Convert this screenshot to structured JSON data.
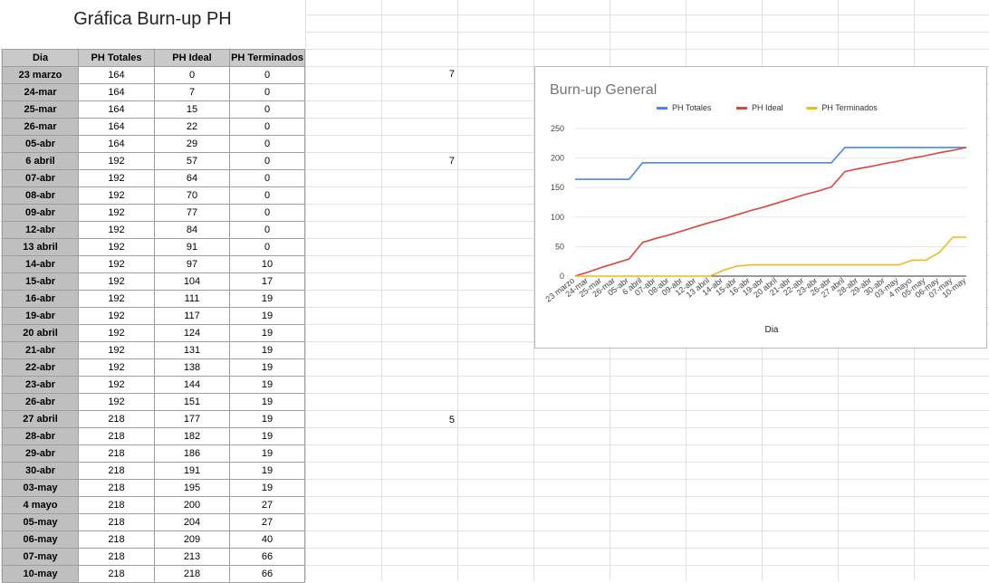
{
  "sheet": {
    "title": "Gráfica Burn-up PH",
    "headers": [
      "Dia",
      "PH Totales",
      "PH Ideal",
      "PH Terminados"
    ],
    "side_values": [
      {
        "row": 0,
        "value": "7"
      },
      {
        "row": 5,
        "value": "7"
      },
      {
        "row": 20,
        "value": "5"
      }
    ]
  },
  "chart_data": {
    "type": "line",
    "title": "Burn-up General",
    "xlabel": "Dia",
    "ylabel": "",
    "ylim": [
      0,
      250
    ],
    "yticks": [
      0,
      50,
      100,
      150,
      200,
      250
    ],
    "legend_position": "top",
    "grid": true,
    "x": [
      "23 marzo",
      "24-mar",
      "25-mar",
      "26-mar",
      "05-abr",
      "6 abril",
      "07-abr",
      "08-abr",
      "09-abr",
      "12-abr",
      "13 abril",
      "14-abr",
      "15-abr",
      "16-abr",
      "19-abr",
      "20 abril",
      "21-abr",
      "22-abr",
      "23-abr",
      "26-abr",
      "27 abril",
      "28-abr",
      "29-abr",
      "30-abr",
      "03-may",
      "4 mayo",
      "05-may",
      "06-may",
      "07-may",
      "10-may"
    ],
    "series": [
      {
        "name": "PH Totales",
        "color": "#4a86e8",
        "values": [
          164,
          164,
          164,
          164,
          164,
          192,
          192,
          192,
          192,
          192,
          192,
          192,
          192,
          192,
          192,
          192,
          192,
          192,
          192,
          192,
          218,
          218,
          218,
          218,
          218,
          218,
          218,
          218,
          218,
          218
        ]
      },
      {
        "name": "PH Ideal",
        "color": "#e0443b",
        "values": [
          0,
          7,
          15,
          22,
          29,
          57,
          64,
          70,
          77,
          84,
          91,
          97,
          104,
          111,
          117,
          124,
          131,
          138,
          144,
          151,
          177,
          182,
          186,
          191,
          195,
          200,
          204,
          209,
          213,
          218
        ]
      },
      {
        "name": "PH Terminados",
        "color": "#f2b61f",
        "values": [
          0,
          0,
          0,
          0,
          0,
          0,
          0,
          0,
          0,
          0,
          0,
          10,
          17,
          19,
          19,
          19,
          19,
          19,
          19,
          19,
          19,
          19,
          19,
          19,
          19,
          27,
          27,
          40,
          66,
          66
        ]
      }
    ]
  }
}
